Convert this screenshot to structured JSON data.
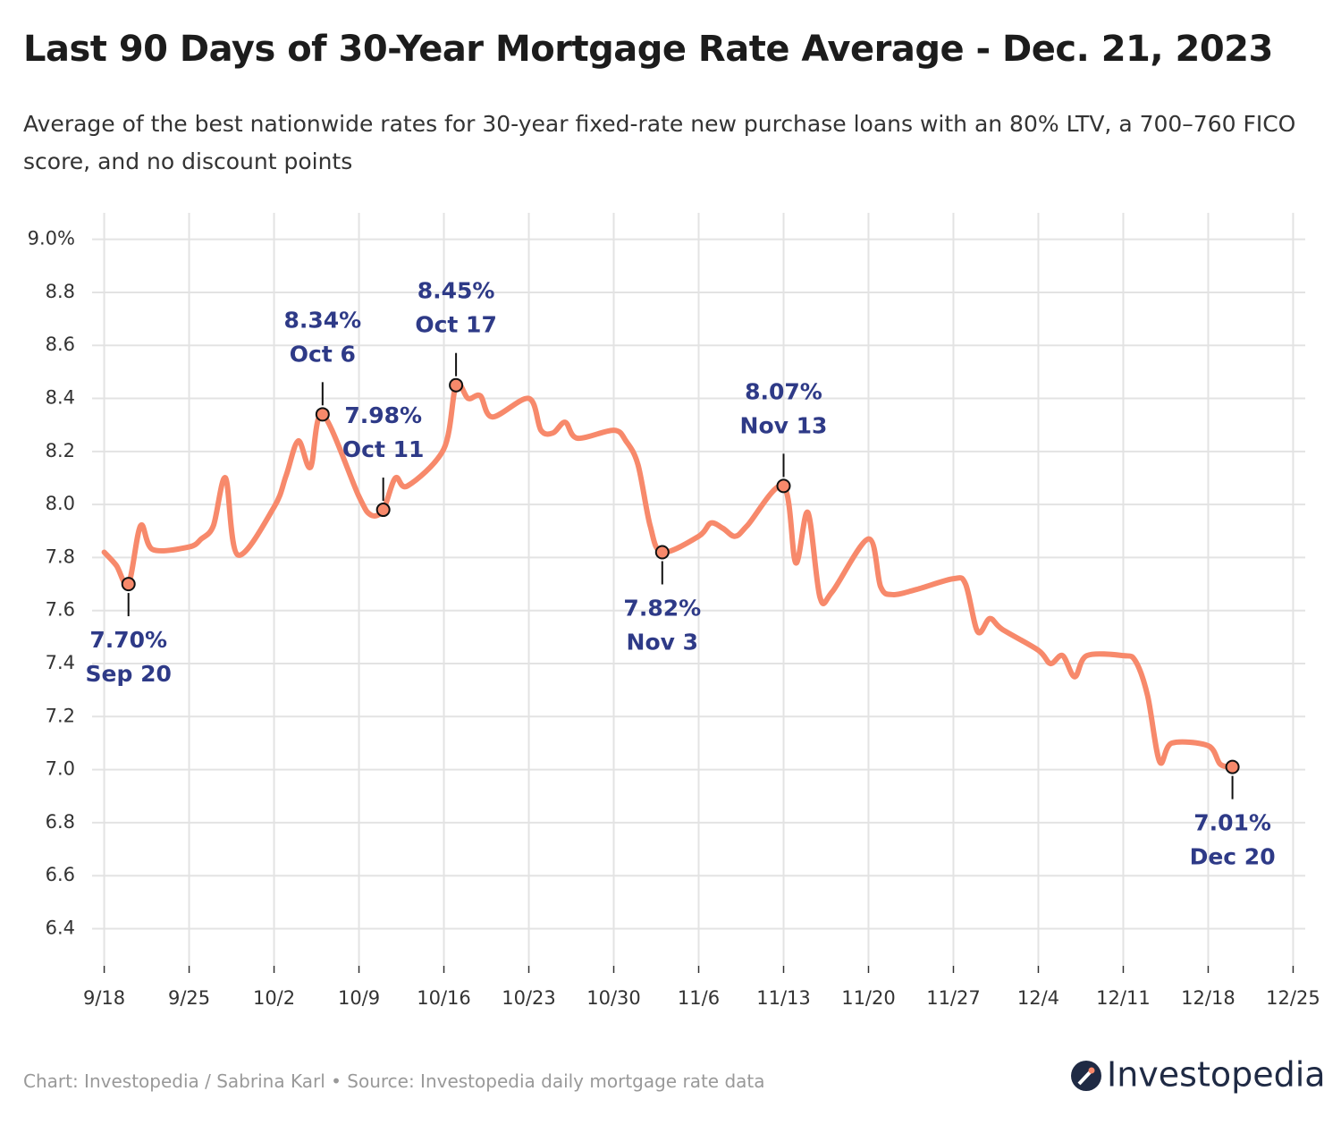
{
  "chart_data": {
    "type": "line",
    "title": "Last 90 Days of 30-Year Mortgage Rate Average - Dec. 21, 2023",
    "subtitle": "Average of the best nationwide rates for 30-year fixed-rate new purchase loans with an 80% LTV, a 700–760 FICO score, and no discount points",
    "source": "Chart: Investopedia / Sabrina Karl • Source: Investopedia daily mortgage rate data",
    "brand": "Investopedia",
    "color": "#f7896b",
    "grid": true,
    "x": [
      "9/18",
      "9/19",
      "9/20",
      "9/21",
      "9/22",
      "9/25",
      "9/26",
      "9/27",
      "9/28",
      "9/29",
      "10/2",
      "10/3",
      "10/4",
      "10/5",
      "10/6",
      "10/9",
      "10/10",
      "10/11",
      "10/12",
      "10/13",
      "10/16",
      "10/17",
      "10/18",
      "10/19",
      "10/20",
      "10/23",
      "10/24",
      "10/25",
      "10/26",
      "10/27",
      "10/30",
      "10/31",
      "11/1",
      "11/2",
      "11/3",
      "11/6",
      "11/7",
      "11/8",
      "11/9",
      "11/10",
      "11/13",
      "11/14",
      "11/15",
      "11/16",
      "11/17",
      "11/20",
      "11/21",
      "11/22",
      "11/24",
      "11/27",
      "11/28",
      "11/29",
      "11/30",
      "12/1",
      "12/4",
      "12/5",
      "12/6",
      "12/7",
      "12/8",
      "12/11",
      "12/12",
      "12/13",
      "12/14",
      "12/15",
      "12/18",
      "12/19",
      "12/20"
    ],
    "values": [
      7.82,
      7.77,
      7.7,
      7.92,
      7.83,
      7.84,
      7.87,
      7.92,
      8.1,
      7.81,
      7.99,
      8.11,
      8.24,
      8.14,
      8.34,
      8.03,
      7.96,
      7.98,
      8.1,
      8.07,
      8.21,
      8.45,
      8.4,
      8.41,
      8.33,
      8.4,
      8.28,
      8.27,
      8.31,
      8.25,
      8.28,
      8.24,
      8.15,
      7.92,
      7.82,
      7.88,
      7.93,
      7.91,
      7.88,
      7.92,
      8.07,
      7.78,
      7.97,
      7.65,
      7.67,
      7.87,
      7.69,
      7.66,
      7.68,
      7.72,
      7.7,
      7.52,
      7.57,
      7.53,
      7.45,
      7.4,
      7.43,
      7.35,
      7.43,
      7.43,
      7.41,
      7.28,
      7.03,
      7.1,
      7.09,
      7.02,
      7.01
    ],
    "xlim": [
      "9/17",
      "12/26"
    ],
    "xticks": [
      "9/18",
      "9/25",
      "10/2",
      "10/9",
      "10/16",
      "10/23",
      "10/30",
      "11/6",
      "11/13",
      "11/20",
      "11/27",
      "12/4",
      "12/11",
      "12/18",
      "12/25"
    ],
    "ylim": [
      6.26,
      9.1
    ],
    "yticks": [
      6.4,
      6.6,
      6.8,
      {
        "value": 7,
        "label": "7.0"
      },
      7.2,
      7.4,
      7.6,
      7.8,
      {
        "value": 8,
        "label": "8.0"
      },
      8.2,
      8.4,
      8.6,
      8.8,
      {
        "value": 9,
        "label": "9.0%"
      }
    ],
    "annotations": [
      {
        "x": "9/20",
        "value": 7.7,
        "value_label": "7.70%",
        "label": "Sep 20"
      },
      {
        "x": "10/6",
        "value": 8.34,
        "value_label": "8.34%",
        "label": "Oct 6"
      },
      {
        "x": "10/11",
        "value": 7.98,
        "value_label": "7.98%",
        "label": "Oct 11"
      },
      {
        "x": "10/17",
        "value": 8.45,
        "value_label": "8.45%",
        "label": "Oct 17"
      },
      {
        "x": "11/3",
        "value": 7.82,
        "value_label": "7.82%",
        "label": "Nov 3"
      },
      {
        "x": "11/13",
        "value": 8.07,
        "value_label": "8.07%",
        "label": "Nov 13"
      },
      {
        "x": "12/20",
        "value": 7.01,
        "value_label": "7.01%",
        "label": "Dec 20"
      }
    ]
  }
}
